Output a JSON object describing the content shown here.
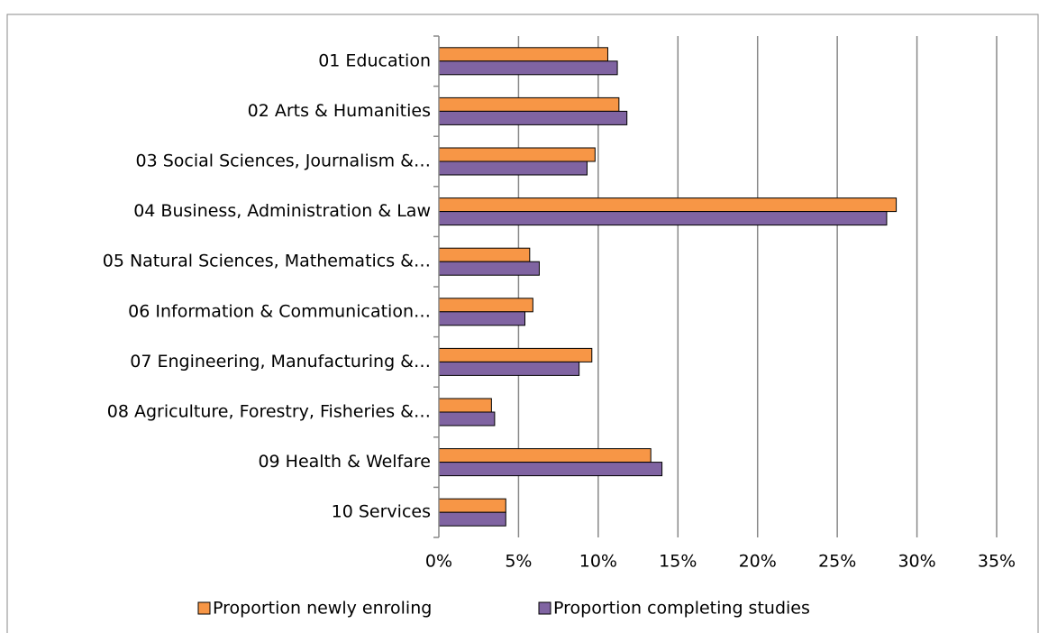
{
  "chart_data": {
    "type": "hbar",
    "categories": [
      "01 Education",
      "02 Arts & Humanities",
      "03 Social Sciences, Journalism &…",
      "04 Business, Administration & Law",
      "05 Natural Sciences, Mathematics &…",
      "06 Information & Communication…",
      "07 Engineering, Manufacturing &…",
      "08 Agriculture, Forestry, Fisheries &…",
      "09 Health & Welfare",
      "10 Services"
    ],
    "series": [
      {
        "name": "Proportion newly enroling",
        "color": "#f79646",
        "values": [
          10.6,
          11.3,
          9.8,
          28.7,
          5.7,
          5.9,
          9.6,
          3.3,
          13.3,
          4.2
        ]
      },
      {
        "name": "Proportion completing studies",
        "color": "#8064a2",
        "values": [
          11.2,
          11.8,
          9.3,
          28.1,
          6.3,
          5.4,
          8.8,
          3.5,
          14.0,
          4.2
        ]
      }
    ],
    "xlim": [
      0,
      35
    ],
    "xticks": [
      {
        "value": 0,
        "label": "0%"
      },
      {
        "value": 5,
        "label": "5%"
      },
      {
        "value": 10,
        "label": "10%"
      },
      {
        "value": 15,
        "label": "15%"
      },
      {
        "value": 20,
        "label": "20%"
      },
      {
        "value": 25,
        "label": "25%"
      },
      {
        "value": 30,
        "label": "30%"
      },
      {
        "value": 35,
        "label": "35%"
      }
    ],
    "grid": true,
    "legend": "bottom"
  }
}
